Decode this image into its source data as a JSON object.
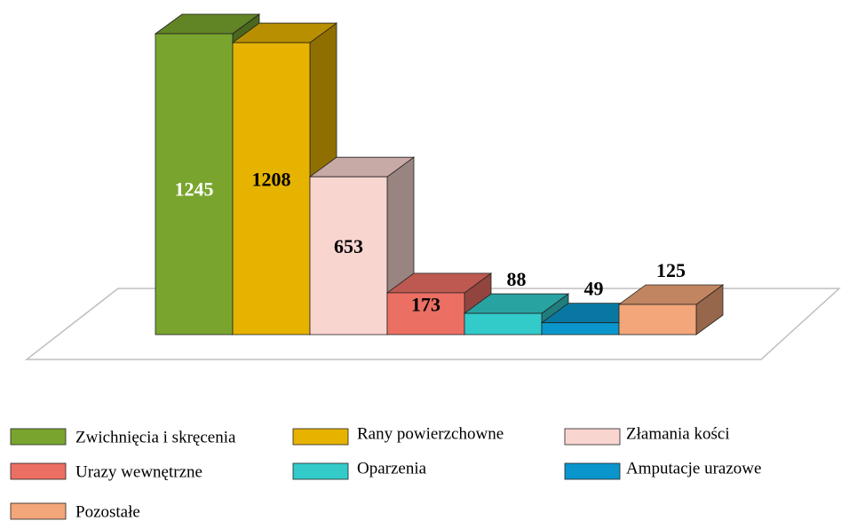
{
  "chart_data": {
    "type": "bar3d",
    "series": [
      {
        "name": "Zwichnięcia i skręcenia",
        "color": "#79a52e",
        "label_color": "#ffffff",
        "values": [
          1245
        ]
      },
      {
        "name": "Rany powierzchowne",
        "color": "#e6b300",
        "label_color": "#000000",
        "values": [
          1208
        ]
      },
      {
        "name": "Złamania kości",
        "color": "#f9d5d0",
        "label_color": "#000000",
        "values": [
          653
        ]
      },
      {
        "name": "Urazy wewnętrzne",
        "color": "#ec6f64",
        "label_color": "#000000",
        "values": [
          173
        ]
      },
      {
        "name": "Oparzenia",
        "color": "#33caca",
        "label_color": "#000000",
        "values": [
          88
        ]
      },
      {
        "name": "Amputacje urazowe",
        "color": "#0a96cc",
        "label_color": "#000000",
        "values": [
          49
        ]
      },
      {
        "name": "Pozostałe",
        "color": "#f3a679",
        "label_color": "#000000",
        "values": [
          125
        ]
      }
    ]
  }
}
